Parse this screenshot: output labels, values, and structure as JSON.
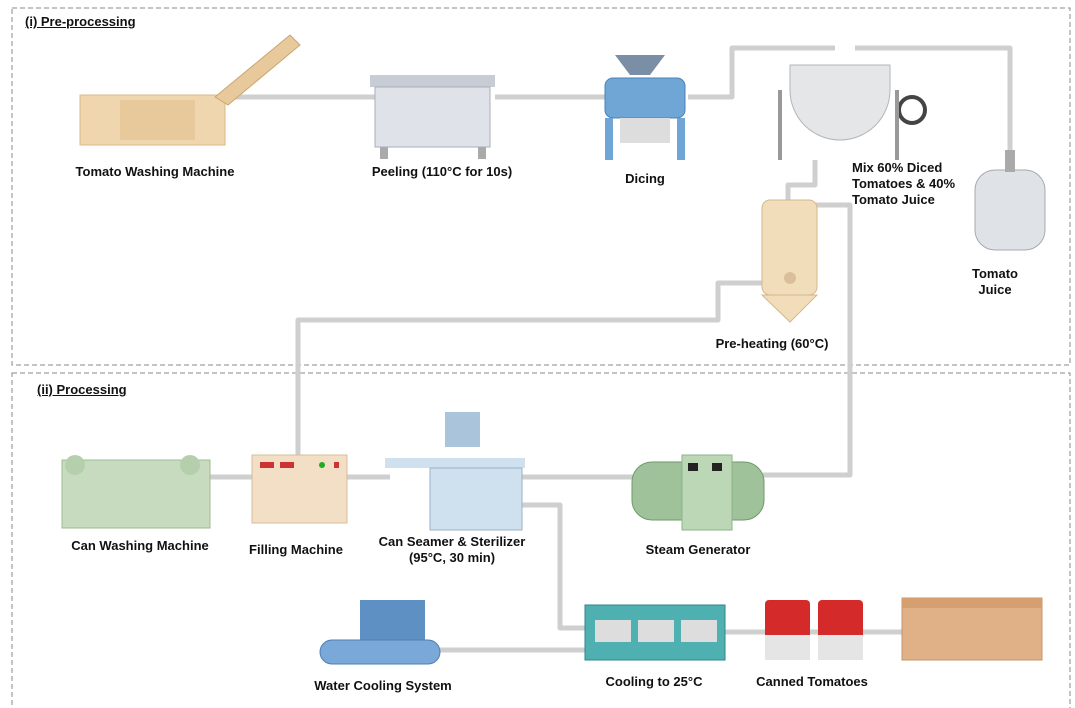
{
  "sections": [
    {
      "title": "(i) Pre-processing",
      "nodes": [
        {
          "label": "Tomato Washing Machine"
        },
        {
          "label": "Peeling (110°C for 10s)"
        },
        {
          "label": "Dicing"
        },
        {
          "label": "Mix 60% Diced Tomatoes & 40% Tomato Juice"
        },
        {
          "label": "Tomato Juice"
        },
        {
          "label": "Pre-heating (60°C)"
        }
      ]
    },
    {
      "title": "(ii) Processing",
      "nodes": [
        {
          "label": "Can Washing Machine"
        },
        {
          "label": "Filling Machine"
        },
        {
          "label": "Can Seamer & Sterilizer (95°C, 30 min)"
        },
        {
          "label": "Steam Generator"
        },
        {
          "label": "Water Cooling System"
        },
        {
          "label": "Cooling to 25°C"
        },
        {
          "label": "Canned Tomatoes"
        }
      ]
    }
  ]
}
